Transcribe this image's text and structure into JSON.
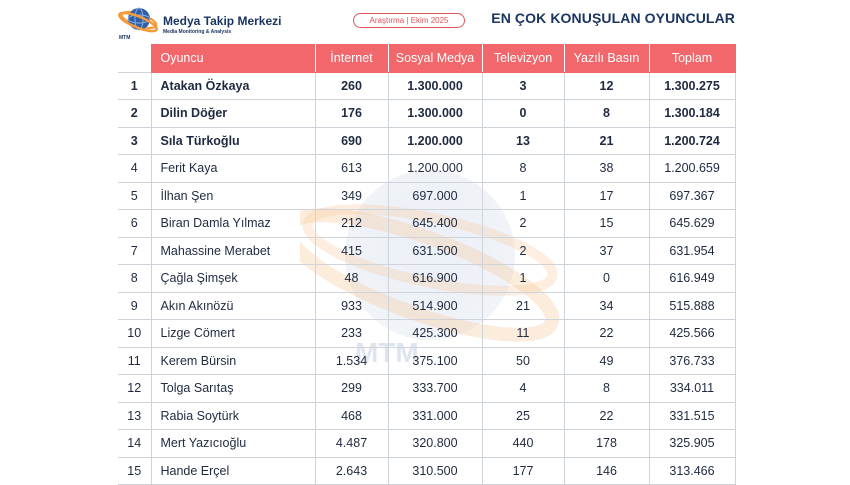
{
  "brand": {
    "title": "Medya Takip Merkezi",
    "subtitle": "Media Monitoring & Analysis",
    "logo_text": "MTM"
  },
  "badge": "Araştırma | Ekim 2025",
  "page_title": "EN ÇOK KONUŞULAN OYUNCULAR",
  "colors": {
    "header_bg": "#f2676b",
    "title": "#1b3561",
    "accent": "#e05558"
  },
  "table": {
    "columns": [
      "",
      "Oyuncu",
      "İnternet",
      "Sosyal Medya",
      "Televizyon",
      "Yazılı Basın",
      "Toplam"
    ],
    "rows": [
      {
        "rank": "1",
        "name": "Atakan Özkaya",
        "internet": "260",
        "social": "1.300.000",
        "tv": "3",
        "print": "12",
        "total": "1.300.275"
      },
      {
        "rank": "2",
        "name": "Dilin Döğer",
        "internet": "176",
        "social": "1.300.000",
        "tv": "0",
        "print": "8",
        "total": "1.300.184"
      },
      {
        "rank": "3",
        "name": "Sıla Türkoğlu",
        "internet": "690",
        "social": "1.200.000",
        "tv": "13",
        "print": "21",
        "total": "1.200.724"
      },
      {
        "rank": "4",
        "name": "Ferit Kaya",
        "internet": "613",
        "social": "1.200.000",
        "tv": "8",
        "print": "38",
        "total": "1.200.659"
      },
      {
        "rank": "5",
        "name": "İlhan Şen",
        "internet": "349",
        "social": "697.000",
        "tv": "1",
        "print": "17",
        "total": "697.367"
      },
      {
        "rank": "6",
        "name": "Biran Damla Yılmaz",
        "internet": "212",
        "social": "645.400",
        "tv": "2",
        "print": "15",
        "total": "645.629"
      },
      {
        "rank": "7",
        "name": "Mahassine Merabet",
        "internet": "415",
        "social": "631.500",
        "tv": "2",
        "print": "37",
        "total": "631.954"
      },
      {
        "rank": "8",
        "name": "Çağla Şimşek",
        "internet": "48",
        "social": "616.900",
        "tv": "1",
        "print": "0",
        "total": "616.949"
      },
      {
        "rank": "9",
        "name": "Akın Akınözü",
        "internet": "933",
        "social": "514.900",
        "tv": "21",
        "print": "34",
        "total": "515.888"
      },
      {
        "rank": "10",
        "name": "Lizge Cömert",
        "internet": "233",
        "social": "425.300",
        "tv": "11",
        "print": "22",
        "total": "425.566"
      },
      {
        "rank": "11",
        "name": "Kerem Bürsin",
        "internet": "1.534",
        "social": "375.100",
        "tv": "50",
        "print": "49",
        "total": "376.733"
      },
      {
        "rank": "12",
        "name": "Tolga Sarıtaş",
        "internet": "299",
        "social": "333.700",
        "tv": "4",
        "print": "8",
        "total": "334.011"
      },
      {
        "rank": "13",
        "name": "Rabia Soytürk",
        "internet": "468",
        "social": "331.000",
        "tv": "25",
        "print": "22",
        "total": "331.515"
      },
      {
        "rank": "14",
        "name": "Mert Yazıcıoğlu",
        "internet": "4.487",
        "social": "320.800",
        "tv": "440",
        "print": "178",
        "total": "325.905"
      },
      {
        "rank": "15",
        "name": "Hande Erçel",
        "internet": "2.643",
        "social": "310.500",
        "tv": "177",
        "print": "146",
        "total": "313.466"
      }
    ]
  }
}
